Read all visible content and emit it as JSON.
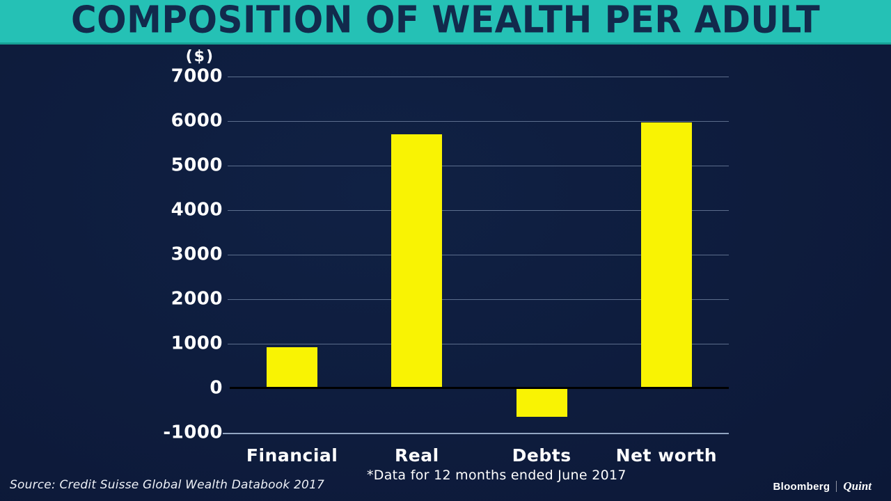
{
  "header": {
    "title": "COMPOSITION OF WEALTH PER ADULT"
  },
  "chart_data": {
    "type": "bar",
    "title": "COMPOSITION OF WEALTH PER ADULT",
    "unit_label": "($)",
    "categories": [
      "Financial",
      "Real",
      "Debts",
      "Net worth"
    ],
    "values": [
      918,
      5702,
      -644,
      5976
    ],
    "ylim": [
      -1000,
      7000
    ],
    "yticks": [
      7000,
      6000,
      5000,
      4000,
      3000,
      2000,
      1000,
      0,
      -1000
    ],
    "grid": true,
    "legend_position": "none",
    "xlabel": "",
    "ylabel": "($)"
  },
  "footer": {
    "source": "Source: Credit Suisse Global Wealth Databook 2017",
    "footnote": "*Data for 12 months ended June 2017",
    "logo": {
      "bloomberg": "Bloomberg",
      "quint": "Quint"
    }
  },
  "colors": {
    "teal": "#25c1b5",
    "teal-dark": "#17a094",
    "title": "#122a4c",
    "bg-center": "#102144",
    "bg-edge": "#0a142f",
    "bar": "#f9f303",
    "grid": "#a9bdd9",
    "zero": "#000000",
    "text": "#ffffff"
  }
}
